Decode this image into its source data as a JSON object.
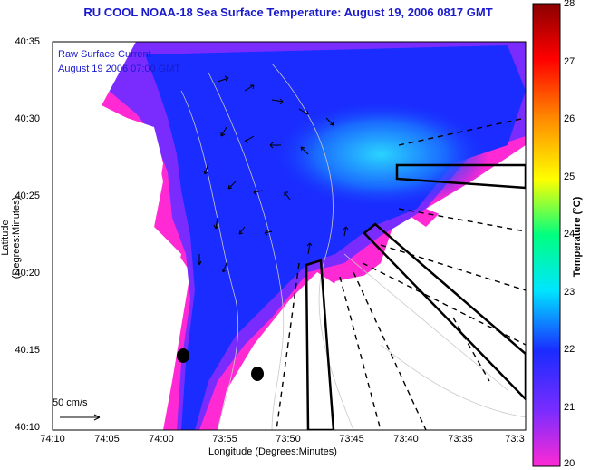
{
  "title": "RU COOL  NOAA-18  Sea Surface Temperature:  August 19, 2006 0817 GMT",
  "legend": {
    "line1": "Raw Surface Current",
    "line2": "August 19 2006 07:00 GMT"
  },
  "axes": {
    "xlabel": "Longitude (Degrees:Minutes)",
    "ylabel": "Latitude (Degrees:Minutes)",
    "xticks": [
      "74:10",
      "74:05",
      "74:00",
      "73:55",
      "73:50",
      "73:45",
      "73:40",
      "73:35",
      "73:3"
    ],
    "yticks": [
      "40:35",
      "40:30",
      "40:25",
      "40:20",
      "40:15",
      "40:10"
    ]
  },
  "colorbar": {
    "label": "Temperature (°C)",
    "ticks": [
      "28",
      "27",
      "26",
      "25",
      "24",
      "23",
      "22",
      "21",
      "20"
    ],
    "colors": [
      "#8b0000",
      "#ff0000",
      "#ff8c00",
      "#ffff00",
      "#00ff80",
      "#00e5ff",
      "#1a2cff",
      "#7a2cff",
      "#ff2ad4"
    ]
  },
  "scale": {
    "label": "50 cm/s"
  },
  "colors": {
    "land": "#ffffff",
    "title": "#1a1acc"
  }
}
